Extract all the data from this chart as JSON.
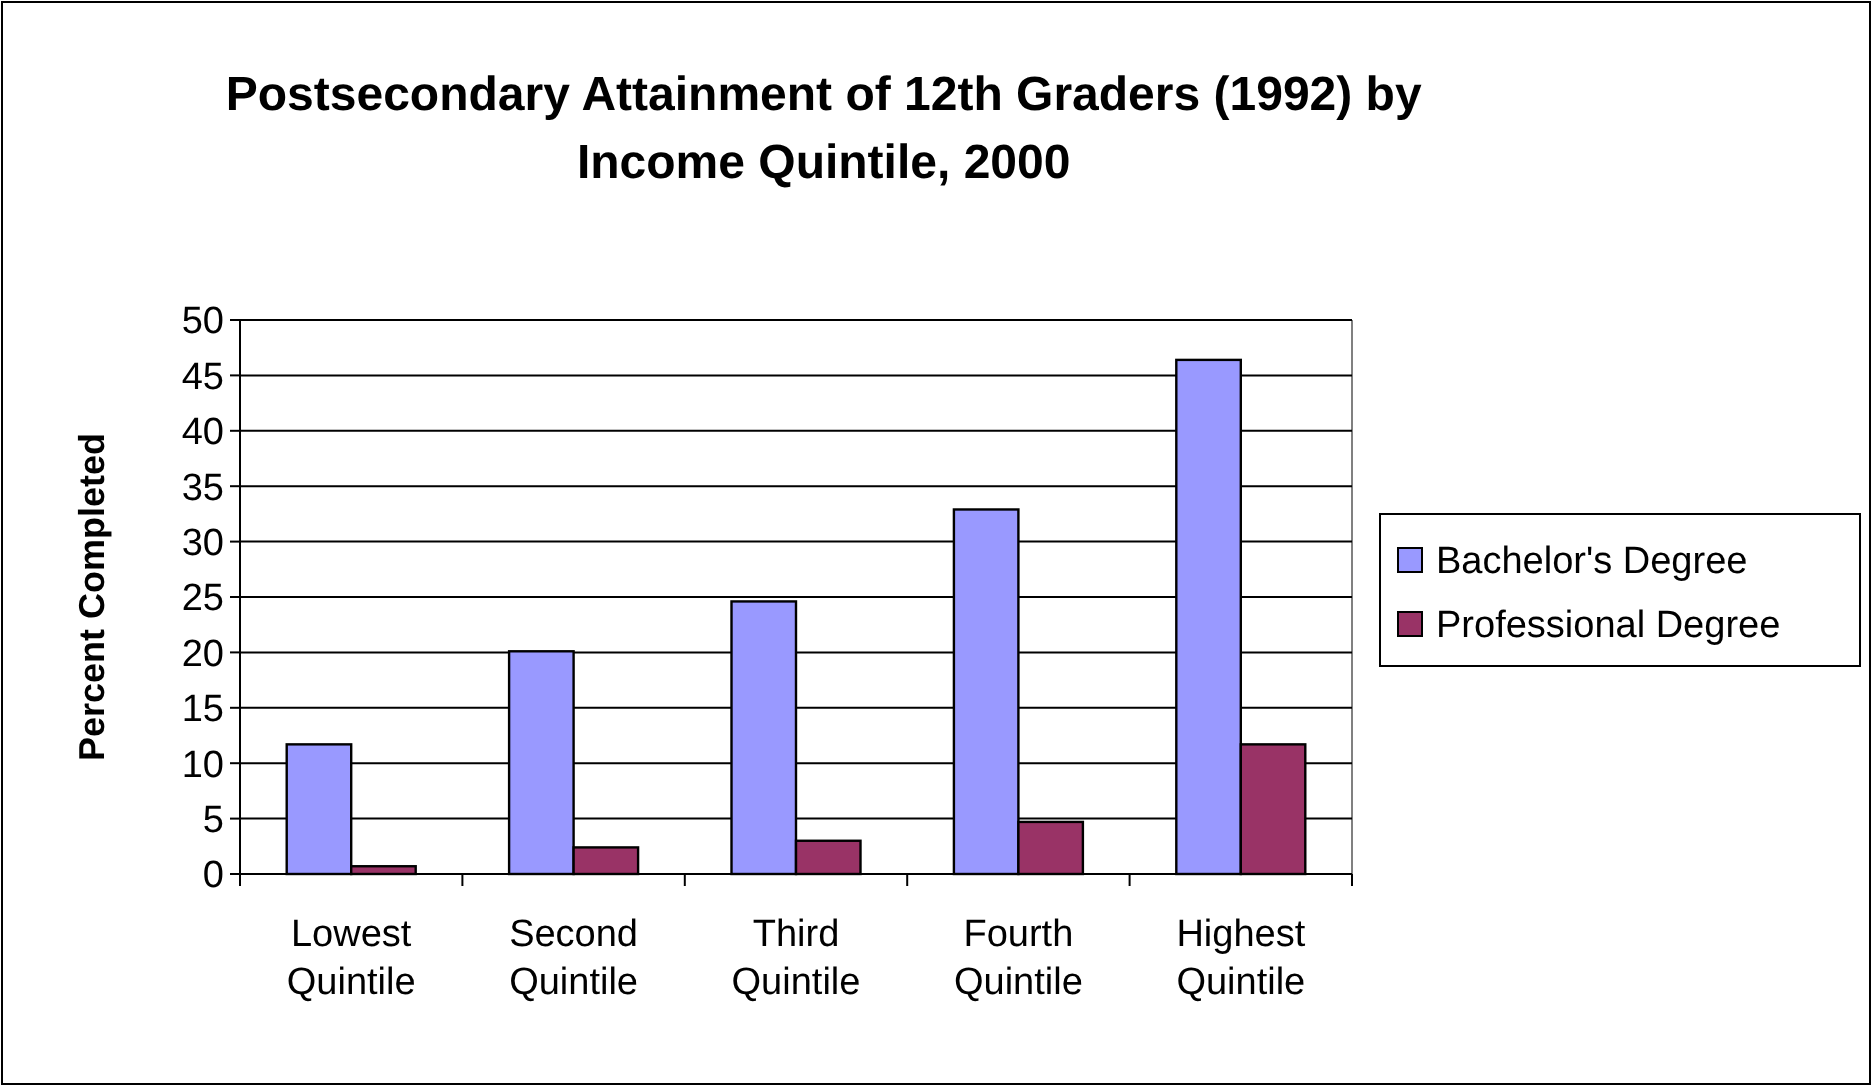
{
  "chart_data": {
    "type": "bar",
    "title": "Postsecondary Attainment of 12th Graders (1992) by Income Quintile, 2000",
    "ylabel": "Percent Completed",
    "categories": [
      "Lowest Quintile",
      "Second Quintile",
      "Third Quintile",
      "Fourth Quintile",
      "Highest Quintile"
    ],
    "series": [
      {
        "name": "Bachelor's Degree",
        "color": "#9999ff",
        "values": [
          11.7,
          20.1,
          24.6,
          32.9,
          46.4
        ]
      },
      {
        "name": "Professional Degree",
        "color": "#993366",
        "values": [
          0.7,
          2.4,
          3.0,
          4.7,
          11.7
        ]
      }
    ],
    "ylim": [
      0,
      50
    ],
    "yticks": [
      0,
      5,
      10,
      15,
      20,
      25,
      30,
      35,
      40,
      45,
      50
    ],
    "grid": "y",
    "legend": "right"
  }
}
